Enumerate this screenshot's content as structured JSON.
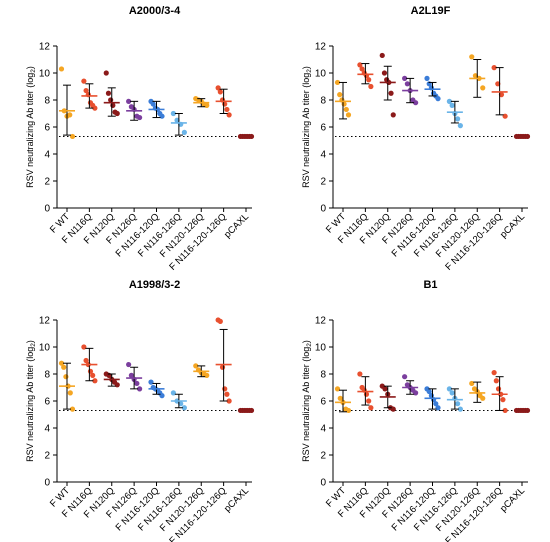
{
  "chart_data": [
    {
      "type": "scatter",
      "title": "A2000/3-4",
      "ylabel": "RSV neutralizing Ab titer (log",
      "ylabel_sub": "2",
      "ylabel_end": ")",
      "ylim": [
        0,
        12
      ],
      "yticks": [
        0,
        2,
        4,
        6,
        8,
        10,
        12
      ],
      "detection_limit": 5.3,
      "categories": [
        "F WT",
        "F N116Q",
        "F N120Q",
        "F N126Q",
        "F N116-120Q",
        "F N116-126Q",
        "F N120-126Q",
        "F N116-120-126Q",
        "pCAXL"
      ],
      "colors": [
        "#f5a623",
        "#e8502f",
        "#8b1a1a",
        "#7b3f9e",
        "#3b7dd8",
        "#6ab4e8",
        "#f5a623",
        "#e8502f",
        "#8b1a1a"
      ],
      "series": [
        {
          "points": [
            10.3,
            7.2,
            6.8,
            6.9,
            5.3
          ],
          "mean": 7.2,
          "sd": [
            5.4,
            9.1
          ]
        },
        {
          "points": [
            9.4,
            8.7,
            8.4,
            7.8,
            7.6,
            7.4
          ],
          "mean": 8.3,
          "sd": [
            7.4,
            9.2
          ]
        },
        {
          "points": [
            10.0,
            8.5,
            8.0,
            7.6,
            7.1,
            7.0
          ],
          "mean": 7.8,
          "sd": [
            6.8,
            8.9
          ]
        },
        {
          "points": [
            7.9,
            7.5,
            7.3,
            6.8,
            6.7
          ],
          "mean": 7.2,
          "sd": [
            6.5,
            7.9
          ]
        },
        {
          "points": [
            7.9,
            7.7,
            7.4,
            7.3,
            7.0,
            6.8
          ],
          "mean": 7.3,
          "sd": [
            6.7,
            7.9
          ]
        },
        {
          "points": [
            7.0,
            6.5,
            6.2,
            5.6
          ],
          "mean": 6.3,
          "sd": [
            5.4,
            7.0
          ]
        },
        {
          "points": [
            8.1,
            8.0,
            7.9,
            7.7,
            7.6
          ],
          "mean": 7.8,
          "sd": [
            7.5,
            8.1
          ]
        },
        {
          "points": [
            8.9,
            8.6,
            8.0,
            7.7,
            7.3,
            6.9
          ],
          "mean": 7.9,
          "sd": [
            7.0,
            8.8
          ]
        },
        {
          "points": [
            5.3,
            5.3,
            5.3,
            5.3,
            5.3,
            5.3
          ],
          "mean": 5.3,
          "sd": [
            5.3,
            5.3
          ]
        }
      ]
    },
    {
      "type": "scatter",
      "title": "A2L19F",
      "ylabel": "RSV neutralizing Ab titer (log",
      "ylabel_sub": "2",
      "ylabel_end": ")",
      "ylim": [
        0,
        12
      ],
      "yticks": [
        0,
        2,
        4,
        6,
        8,
        10,
        12
      ],
      "detection_limit": 5.3,
      "categories": [
        "F WT",
        "F N116Q",
        "F N120Q",
        "F N126Q",
        "F N116-120Q",
        "F N116-126Q",
        "F N120-126Q",
        "F N116-120-126Q",
        "pCAXL"
      ],
      "colors": [
        "#f5a623",
        "#e8502f",
        "#8b1a1a",
        "#7b3f9e",
        "#3b7dd8",
        "#6ab4e8",
        "#f5a623",
        "#e8502f",
        "#8b1a1a"
      ],
      "series": [
        {
          "points": [
            9.3,
            8.4,
            8.0,
            7.7,
            7.3,
            6.9
          ],
          "mean": 7.9,
          "sd": [
            6.6,
            9.3
          ]
        },
        {
          "points": [
            10.6,
            10.3,
            10.0,
            9.8,
            9.5,
            9.0
          ],
          "mean": 9.9,
          "sd": [
            9.2,
            10.7
          ]
        },
        {
          "points": [
            11.3,
            10.0,
            9.5,
            9.3,
            8.5,
            6.9
          ],
          "mean": 9.3,
          "sd": [
            8.0,
            10.5
          ]
        },
        {
          "points": [
            9.6,
            9.2,
            8.7,
            8.0,
            7.8
          ],
          "mean": 8.7,
          "sd": [
            7.8,
            9.6
          ]
        },
        {
          "points": [
            9.6,
            9.2,
            8.9,
            8.5,
            8.3,
            8.1
          ],
          "mean": 8.8,
          "sd": [
            8.3,
            9.3
          ]
        },
        {
          "points": [
            7.9,
            7.6,
            7.0,
            6.6,
            6.1
          ],
          "mean": 7.1,
          "sd": [
            6.3,
            7.9
          ]
        },
        {
          "points": [
            11.2,
            9.8,
            9.6,
            8.9
          ],
          "mean": 9.6,
          "sd": [
            8.2,
            11.0
          ]
        },
        {
          "points": [
            10.4,
            9.2,
            8.4,
            6.8
          ],
          "mean": 8.6,
          "sd": [
            6.9,
            10.4
          ]
        },
        {
          "points": [
            5.3,
            5.3,
            5.3,
            5.3,
            5.3,
            5.3
          ],
          "mean": 5.3,
          "sd": [
            5.3,
            5.3
          ]
        }
      ]
    },
    {
      "type": "scatter",
      "title": "A1998/3-2",
      "ylabel": "RSV neutralizing Ab titer (log",
      "ylabel_sub": "2",
      "ylabel_end": ")",
      "ylim": [
        0,
        12
      ],
      "yticks": [
        0,
        2,
        4,
        6,
        8,
        10,
        12
      ],
      "detection_limit": 5.3,
      "categories": [
        "F WT",
        "F N116Q",
        "F N120Q",
        "F N126Q",
        "F N116-120Q",
        "F N116-126Q",
        "F N120-126Q",
        "F N116-120-126Q",
        "pCAXL"
      ],
      "colors": [
        "#f5a623",
        "#e8502f",
        "#8b1a1a",
        "#7b3f9e",
        "#3b7dd8",
        "#6ab4e8",
        "#f5a623",
        "#e8502f",
        "#8b1a1a"
      ],
      "series": [
        {
          "points": [
            8.8,
            8.5,
            7.8,
            7.1,
            6.6,
            5.4
          ],
          "mean": 7.1,
          "sd": [
            5.4,
            8.8
          ]
        },
        {
          "points": [
            10.0,
            9.0,
            8.7,
            8.2,
            7.9,
            7.5
          ],
          "mean": 8.7,
          "sd": [
            7.5,
            9.9
          ]
        },
        {
          "points": [
            8.0,
            7.9,
            7.6,
            7.4,
            7.2
          ],
          "mean": 7.6,
          "sd": [
            7.1,
            8.0
          ]
        },
        {
          "points": [
            8.7,
            7.9,
            7.6,
            7.3,
            6.9
          ],
          "mean": 7.7,
          "sd": [
            6.9,
            8.5
          ]
        },
        {
          "points": [
            7.4,
            7.0,
            6.9,
            6.8,
            6.6,
            6.4
          ],
          "mean": 6.9,
          "sd": [
            6.5,
            7.3
          ]
        },
        {
          "points": [
            6.6,
            6.0,
            5.8,
            5.5
          ],
          "mean": 6.0,
          "sd": [
            5.5,
            6.5
          ]
        },
        {
          "points": [
            8.6,
            8.3,
            8.1,
            8.0,
            7.9
          ],
          "mean": 8.2,
          "sd": [
            7.8,
            8.6
          ]
        },
        {
          "points": [
            12.0,
            11.9,
            8.5,
            6.9,
            6.5,
            6.0
          ],
          "mean": 8.7,
          "sd": [
            6.0,
            11.3
          ]
        },
        {
          "points": [
            5.3,
            5.3,
            5.3,
            5.3,
            5.3,
            5.3
          ],
          "mean": 5.3,
          "sd": [
            5.3,
            5.3
          ]
        }
      ]
    },
    {
      "type": "scatter",
      "title": "B1",
      "ylabel": "RSV neutralizing Ab titer (log",
      "ylabel_sub": "2",
      "ylabel_end": ")",
      "ylim": [
        0,
        12
      ],
      "yticks": [
        0,
        2,
        4,
        6,
        8,
        10,
        12
      ],
      "detection_limit": 5.3,
      "categories": [
        "F WT",
        "F N116Q",
        "F N120Q",
        "F N126Q",
        "F N116-120Q",
        "F N116-126Q",
        "F N120-126Q",
        "F N116-120-126Q",
        "pCAXL"
      ],
      "colors": [
        "#f5a623",
        "#e8502f",
        "#8b1a1a",
        "#7b3f9e",
        "#3b7dd8",
        "#6ab4e8",
        "#f5a623",
        "#e8502f",
        "#8b1a1a"
      ],
      "series": [
        {
          "points": [
            6.9,
            6.2,
            5.9,
            5.4,
            5.3
          ],
          "mean": 5.9,
          "sd": [
            5.2,
            6.8
          ]
        },
        {
          "points": [
            8.0,
            7.0,
            6.8,
            6.5,
            6.0,
            5.5
          ],
          "mean": 6.7,
          "sd": [
            5.7,
            7.8
          ]
        },
        {
          "points": [
            7.1,
            6.9,
            6.5,
            5.5,
            5.4
          ],
          "mean": 6.3,
          "sd": [
            5.5,
            7.1
          ]
        },
        {
          "points": [
            7.8,
            7.2,
            7.0,
            6.8,
            6.6
          ],
          "mean": 7.0,
          "sd": [
            6.5,
            7.5
          ]
        },
        {
          "points": [
            6.9,
            6.7,
            6.4,
            6.1,
            5.8,
            5.5
          ],
          "mean": 6.2,
          "sd": [
            5.4,
            6.9
          ]
        },
        {
          "points": [
            6.9,
            6.6,
            6.2,
            5.8,
            5.4
          ],
          "mean": 6.1,
          "sd": [
            5.4,
            6.9
          ]
        },
        {
          "points": [
            7.3,
            6.9,
            6.7,
            6.4,
            6.2
          ],
          "mean": 6.6,
          "sd": [
            5.9,
            7.4
          ]
        },
        {
          "points": [
            8.1,
            7.5,
            6.9,
            6.5,
            6.1,
            5.3
          ],
          "mean": 6.5,
          "sd": [
            5.3,
            7.8
          ]
        },
        {
          "points": [
            5.3,
            5.3,
            5.3,
            5.3,
            5.3,
            5.3
          ],
          "mean": 5.3,
          "sd": [
            5.3,
            5.3
          ]
        }
      ]
    }
  ]
}
